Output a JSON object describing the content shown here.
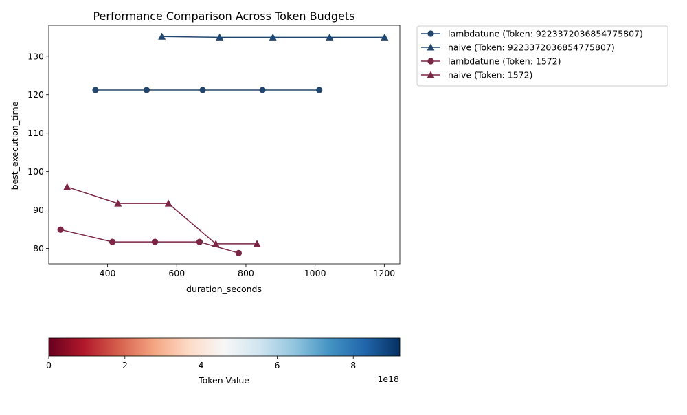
{
  "chart_data": {
    "type": "line",
    "title": "Performance Comparison Across Token Budgets",
    "xlabel": "duration_seconds",
    "ylabel": "best_execution_time",
    "xlim": [
      230,
      1245
    ],
    "ylim": [
      76,
      138
    ],
    "x_ticks": [
      400,
      600,
      800,
      1000,
      1200
    ],
    "y_ticks": [
      80,
      90,
      100,
      110,
      120,
      130
    ],
    "grid": false,
    "legend_position": "outside-top-right",
    "series": [
      {
        "name": "lambdatune (Token: 9223372036854775807)",
        "color": "#23466e",
        "marker": "circle",
        "points": [
          [
            365,
            121.2
          ],
          [
            513,
            121.2
          ],
          [
            675,
            121.2
          ],
          [
            848,
            121.2
          ],
          [
            1012,
            121.2
          ]
        ]
      },
      {
        "name": "naive (Token: 9223372036854775807)",
        "color": "#23466e",
        "marker": "triangle",
        "points": [
          [
            557,
            135.1
          ],
          [
            724,
            134.9
          ],
          [
            878,
            134.9
          ],
          [
            1042,
            134.9
          ],
          [
            1201,
            134.9
          ]
        ]
      },
      {
        "name": "lambdatune (Token: 1572)",
        "color": "#7a2645",
        "marker": "circle",
        "points": [
          [
            264,
            84.9
          ],
          [
            414,
            81.7
          ],
          [
            537,
            81.7
          ],
          [
            666,
            81.7
          ],
          [
            779,
            78.8
          ]
        ]
      },
      {
        "name": "naive (Token: 1572)",
        "color": "#7a2645",
        "marker": "triangle",
        "points": [
          [
            283,
            96.0
          ],
          [
            430,
            91.7
          ],
          [
            576,
            91.7
          ],
          [
            713,
            81.2
          ],
          [
            832,
            81.2
          ]
        ]
      }
    ],
    "colorbar": {
      "label": "Token Value",
      "range": [
        0,
        9.223372036854776e+18
      ],
      "ticks": [
        0,
        2,
        4,
        6,
        8
      ],
      "tick_labels": [
        "0",
        "2",
        "4",
        "6",
        "8"
      ],
      "offset_text": "1e18",
      "colormap": "RdBu",
      "colors": [
        "#67001f",
        "#b2182b",
        "#d6604d",
        "#f4a582",
        "#fddbc7",
        "#f7f7f7",
        "#d1e5f0",
        "#92c5de",
        "#4393c3",
        "#2166ac",
        "#053061"
      ]
    }
  }
}
